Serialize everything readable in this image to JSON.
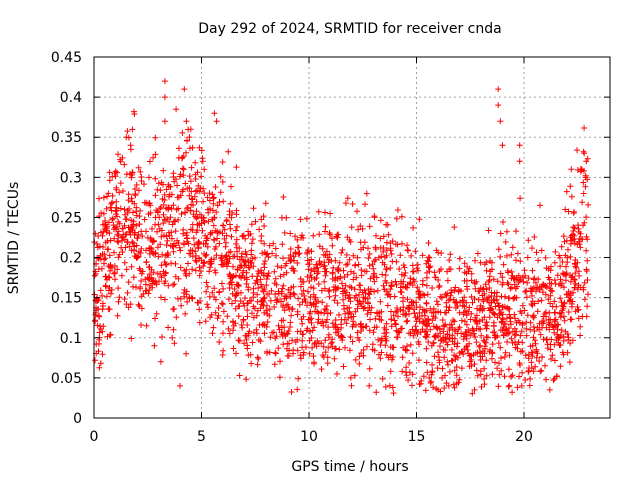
{
  "chart_data": {
    "type": "scatter",
    "title": "Day 292 of 2024, SRMTID for receiver cnda",
    "xlabel": "GPS time / hours",
    "ylabel": "SRMTID / TECUs",
    "xlim": [
      0,
      24
    ],
    "ylim": [
      0,
      0.45
    ],
    "x_ticks": [
      "0",
      "5",
      "10",
      "15",
      "20"
    ],
    "x_tick_values": [
      0,
      5,
      10,
      15,
      20
    ],
    "y_ticks": [
      "0",
      "0.05",
      "0.1",
      "0.15",
      "0.2",
      "0.25",
      "0.3",
      "0.35",
      "0.4",
      "0.45"
    ],
    "y_tick_values": [
      0,
      0.05,
      0.1,
      0.15,
      0.2,
      0.25,
      0.3,
      0.35,
      0.4,
      0.45
    ],
    "grid": true,
    "marker": "+",
    "color": "#ff0000",
    "x_range_of_data": [
      0,
      23
    ],
    "series": [
      {
        "name": "SRMTID",
        "profile": [
          {
            "x": 0.0,
            "y": 0.15,
            "spread": 0.04
          },
          {
            "x": 0.5,
            "y": 0.19,
            "spread": 0.05
          },
          {
            "x": 1.0,
            "y": 0.23,
            "spread": 0.05
          },
          {
            "x": 1.6,
            "y": 0.25,
            "spread": 0.06
          },
          {
            "x": 2.5,
            "y": 0.2,
            "spread": 0.05
          },
          {
            "x": 3.3,
            "y": 0.22,
            "spread": 0.06
          },
          {
            "x": 4.2,
            "y": 0.24,
            "spread": 0.06
          },
          {
            "x": 5.0,
            "y": 0.23,
            "spread": 0.05
          },
          {
            "x": 6.0,
            "y": 0.2,
            "spread": 0.05
          },
          {
            "x": 7.0,
            "y": 0.16,
            "spread": 0.045
          },
          {
            "x": 9.0,
            "y": 0.15,
            "spread": 0.045
          },
          {
            "x": 11.0,
            "y": 0.15,
            "spread": 0.045
          },
          {
            "x": 13.0,
            "y": 0.15,
            "spread": 0.05
          },
          {
            "x": 14.5,
            "y": 0.14,
            "spread": 0.05
          },
          {
            "x": 16.0,
            "y": 0.12,
            "spread": 0.045
          },
          {
            "x": 17.5,
            "y": 0.12,
            "spread": 0.04
          },
          {
            "x": 18.8,
            "y": 0.13,
            "spread": 0.045
          },
          {
            "x": 20.0,
            "y": 0.14,
            "spread": 0.05
          },
          {
            "x": 21.5,
            "y": 0.12,
            "spread": 0.04
          },
          {
            "x": 22.5,
            "y": 0.2,
            "spread": 0.06
          },
          {
            "x": 23.0,
            "y": 0.24,
            "spread": 0.06
          }
        ],
        "n_points": 2600,
        "highlights": [
          {
            "x": 3.3,
            "y": 0.42
          },
          {
            "x": 3.3,
            "y": 0.4
          },
          {
            "x": 3.3,
            "y": 0.37
          },
          {
            "x": 4.2,
            "y": 0.41
          },
          {
            "x": 4.3,
            "y": 0.37
          },
          {
            "x": 4.5,
            "y": 0.36
          },
          {
            "x": 5.6,
            "y": 0.38
          },
          {
            "x": 5.7,
            "y": 0.37
          },
          {
            "x": 18.8,
            "y": 0.41
          },
          {
            "x": 18.8,
            "y": 0.39
          },
          {
            "x": 18.9,
            "y": 0.37
          },
          {
            "x": 19.0,
            "y": 0.34
          },
          {
            "x": 19.8,
            "y": 0.34
          },
          {
            "x": 19.8,
            "y": 0.32
          },
          {
            "x": 1.5,
            "y": 0.35
          },
          {
            "x": 1.7,
            "y": 0.34
          },
          {
            "x": 22.8,
            "y": 0.33
          },
          {
            "x": 22.9,
            "y": 0.32
          },
          {
            "x": 22.2,
            "y": 0.31
          },
          {
            "x": 4.0,
            "y": 0.04
          },
          {
            "x": 12.8,
            "y": 0.04
          },
          {
            "x": 16.0,
            "y": 0.035
          },
          {
            "x": 16.5,
            "y": 0.04
          },
          {
            "x": 17.7,
            "y": 0.035
          },
          {
            "x": 19.9,
            "y": 0.04
          },
          {
            "x": 21.2,
            "y": 0.035
          }
        ]
      }
    ]
  }
}
